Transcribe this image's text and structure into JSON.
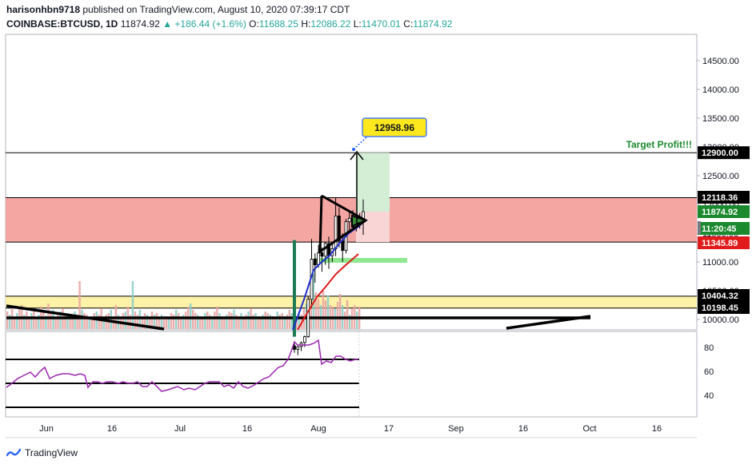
{
  "header": {
    "user": "harisonhbn9718",
    "published_text": " published on TradingView.com, August 10, 2020 07:39:17 CDT",
    "symbol": "COINBASE:BTCUSD, 1D",
    "last": "11874.92",
    "change": "▲ +186.44 (+1.6%)",
    "open_label": "O:",
    "open": "11688.25",
    "high_label": "H:",
    "high": "12086.22",
    "low_label": "L:",
    "low": "11470.01",
    "close_label": "C:",
    "close": "11874.92"
  },
  "footer": {
    "brand": "TradingView",
    "brand_icon": "tradingview-logo-icon"
  },
  "colors": {
    "up": "#26a69a",
    "down": "#ef5350",
    "resistance_zone": "#f4a6a3",
    "support_zone": "#fdf2a8",
    "target_box": "#d4eed6",
    "stop_box": "#f9d5d5",
    "rsi_line": "#9c27b0",
    "ma_fast": "#1e2ecc",
    "ma_slow": "#e01b1b",
    "callout": "#fde81e"
  },
  "chart_data": [
    {
      "type": "candlestick",
      "title": "",
      "y_ticks": [
        10000,
        10500,
        11000,
        11500,
        12000,
        12500,
        13000,
        13500,
        14000,
        14500
      ],
      "x_ticks": [
        "Jun",
        "16",
        "Jul",
        "16",
        "Aug",
        "17",
        "Sep",
        "16",
        "Oct",
        "16"
      ],
      "ylim": [
        9850,
        14850
      ],
      "price_labels": [
        {
          "text": "12900.00",
          "value": 12900,
          "style": "black"
        },
        {
          "text": "12118.36",
          "value": 12118.36,
          "style": "black"
        },
        {
          "text": "11874.92",
          "value": 11874.92,
          "style": "green"
        },
        {
          "text": "11:20:45",
          "value": 11700,
          "style": "green"
        },
        {
          "text": "11345.89",
          "value": 11345.89,
          "style": "red"
        },
        {
          "text": "10404.32",
          "value": 10404.32,
          "style": "black"
        },
        {
          "text": "10198.45",
          "value": 10198.45,
          "style": "black"
        }
      ],
      "annotations": [
        {
          "text": "Target Profit!!!",
          "value": 12900
        },
        {
          "text": "12958.96",
          "value": 12958.96
        }
      ],
      "levels": {
        "target": 12900,
        "resistance_zone": [
          11345.89,
          12118.36
        ],
        "support_zone": [
          10198.45,
          10404.32
        ],
        "entry": 11874.92,
        "stop": 11345.89,
        "callout": 12958.96
      },
      "candles_july_aug": [
        {
          "o": 9540,
          "h": 9620,
          "l": 9420,
          "c": 9480
        },
        {
          "o": 9480,
          "h": 9560,
          "l": 9380,
          "c": 9520
        },
        {
          "o": 9530,
          "h": 9620,
          "l": 9450,
          "c": 9590
        },
        {
          "o": 9600,
          "h": 9720,
          "l": 9520,
          "c": 9700
        },
        {
          "o": 9700,
          "h": 10400,
          "l": 9680,
          "c": 10350
        },
        {
          "o": 10350,
          "h": 11400,
          "l": 10200,
          "c": 11050
        },
        {
          "o": 11050,
          "h": 11150,
          "l": 10640,
          "c": 10950
        },
        {
          "o": 10950,
          "h": 11300,
          "l": 10900,
          "c": 11160
        },
        {
          "o": 11160,
          "h": 11250,
          "l": 10830,
          "c": 11100
        },
        {
          "o": 11100,
          "h": 11350,
          "l": 10950,
          "c": 11320
        },
        {
          "o": 11320,
          "h": 11440,
          "l": 10880,
          "c": 11110
        },
        {
          "o": 11110,
          "h": 11330,
          "l": 11000,
          "c": 11230
        },
        {
          "o": 11230,
          "h": 12120,
          "l": 11100,
          "c": 11800
        },
        {
          "o": 11800,
          "h": 11950,
          "l": 11250,
          "c": 11370
        },
        {
          "o": 11370,
          "h": 11500,
          "l": 11000,
          "c": 11200
        },
        {
          "o": 11200,
          "h": 11750,
          "l": 11150,
          "c": 11700
        },
        {
          "o": 11700,
          "h": 11880,
          "l": 11500,
          "c": 11760
        },
        {
          "o": 11760,
          "h": 11900,
          "l": 11560,
          "c": 11600
        },
        {
          "o": 11600,
          "h": 11800,
          "l": 11530,
          "c": 11730
        },
        {
          "o": 11730,
          "h": 11850,
          "l": 11580,
          "c": 11690
        },
        {
          "o": 11690,
          "h": 12086,
          "l": 11470,
          "c": 11875
        }
      ]
    },
    {
      "type": "line",
      "title": "RSI",
      "y_ticks": [
        40,
        60,
        80
      ],
      "levels": [
        30,
        50,
        70
      ]
    }
  ]
}
